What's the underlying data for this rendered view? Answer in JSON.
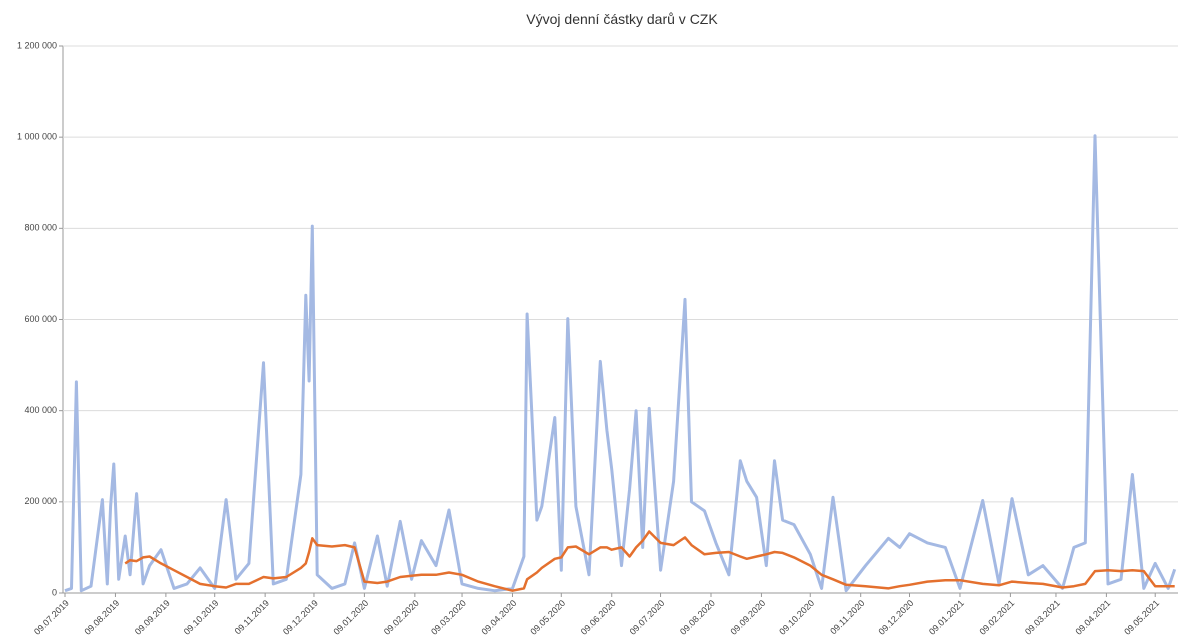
{
  "chart_data": {
    "type": "line",
    "title": "Vývoj denní částky darů v CZK",
    "x": [
      "09.07.2019",
      "13.07.2019",
      "16.07.2019",
      "19.07.2019",
      "25.07.2019",
      "01.08.2019",
      "04.08.2019",
      "06.08.2019",
      "08.08.2019",
      "11.08.2019",
      "15.08.2019",
      "18.08.2019",
      "22.08.2019",
      "26.08.2019",
      "30.08.2019",
      "06.09.2019",
      "14.09.2019",
      "22.09.2019",
      "30.09.2019",
      "09.10.2019",
      "16.10.2019",
      "22.10.2019",
      "30.10.2019",
      "08.11.2019",
      "14.11.2019",
      "22.11.2019",
      "01.12.2019",
      "04.12.2019",
      "06.12.2019",
      "08.12.2019",
      "11.12.2019",
      "20.12.2019",
      "28.12.2019",
      "03.01.2020",
      "09.01.2020",
      "17.01.2020",
      "23.01.2020",
      "31.01.2020",
      "07.02.2020",
      "13.02.2020",
      "22.02.2020",
      "01.03.2020",
      "09.03.2020",
      "19.03.2020",
      "29.03.2020",
      "09.04.2020",
      "16.04.2020",
      "18.04.2020",
      "24.04.2020",
      "27.04.2020",
      "05.05.2020",
      "09.05.2020",
      "13.05.2020",
      "18.05.2020",
      "26.05.2020",
      "02.06.2020",
      "06.06.2020",
      "09.06.2020",
      "15.06.2020",
      "20.06.2020",
      "24.06.2020",
      "28.06.2020",
      "02.07.2020",
      "09.07.2020",
      "17.07.2020",
      "24.07.2020",
      "28.07.2020",
      "05.08.2020",
      "12.08.2020",
      "20.08.2020",
      "27.08.2020",
      "31.08.2020",
      "06.09.2020",
      "12.09.2020",
      "17.09.2020",
      "22.09.2020",
      "29.09.2020",
      "09.10.2020",
      "16.10.2020",
      "23.10.2020",
      "31.10.2020",
      "12.11.2020",
      "26.11.2020",
      "03.12.2020",
      "09.12.2020",
      "20.12.2020",
      "31.12.2020",
      "09.01.2021",
      "23.01.2021",
      "02.02.2021",
      "10.02.2021",
      "20.02.2021",
      "01.03.2021",
      "13.03.2021",
      "20.03.2021",
      "27.03.2021",
      "02.04.2021",
      "10.04.2021",
      "18.04.2021",
      "25.04.2021",
      "02.05.2021",
      "09.05.2021",
      "17.05.2021",
      "21.05.2021"
    ],
    "series": [
      {
        "color": "#a4b9e3",
        "width": 3,
        "values": [
          5000,
          10000,
          463000,
          5000,
          15000,
          205000,
          20000,
          190000,
          283000,
          30000,
          125000,
          40000,
          218000,
          20000,
          60000,
          95000,
          10000,
          20000,
          55000,
          10000,
          205000,
          30000,
          65000,
          505000,
          20000,
          30000,
          260000,
          653000,
          465000,
          805000,
          40000,
          10000,
          20000,
          110000,
          10000,
          125000,
          15000,
          157000,
          30000,
          115000,
          60000,
          182000,
          20000,
          10000,
          5000,
          10000,
          80000,
          612000,
          160000,
          190000,
          385000,
          50000,
          602000,
          190000,
          40000,
          508000,
          357000,
          272000,
          60000,
          228000,
          400000,
          100000,
          405000,
          50000,
          245000,
          644000,
          200000,
          180000,
          110000,
          40000,
          290000,
          245000,
          210000,
          60000,
          290000,
          160000,
          150000,
          85000,
          10000,
          210000,
          5000,
          60000,
          120000,
          100000,
          130000,
          110000,
          100000,
          10000,
          203000,
          20000,
          207000,
          40000,
          60000,
          10000,
          100000,
          110000,
          1003000,
          20000,
          30000,
          260000,
          10000,
          65000,
          10000,
          52000
        ]
      },
      {
        "color": "#e4702e",
        "width": 2.5,
        "values": [
          null,
          null,
          null,
          null,
          null,
          null,
          null,
          null,
          null,
          null,
          65000,
          72000,
          70000,
          78000,
          80000,
          65000,
          50000,
          35000,
          20000,
          15000,
          12000,
          20000,
          20000,
          35000,
          32000,
          35000,
          55000,
          65000,
          90000,
          120000,
          105000,
          102000,
          105000,
          100000,
          25000,
          22000,
          25000,
          35000,
          38000,
          40000,
          40000,
          45000,
          40000,
          25000,
          15000,
          5000,
          10000,
          30000,
          45000,
          55000,
          75000,
          78000,
          100000,
          102000,
          85000,
          100000,
          100000,
          95000,
          100000,
          80000,
          100000,
          115000,
          135000,
          110000,
          105000,
          122000,
          105000,
          85000,
          88000,
          90000,
          80000,
          75000,
          80000,
          85000,
          90000,
          88000,
          78000,
          60000,
          40000,
          30000,
          18000,
          15000,
          10000,
          15000,
          18000,
          25000,
          28000,
          28000,
          20000,
          17000,
          25000,
          22000,
          20000,
          12000,
          15000,
          20000,
          48000,
          50000,
          48000,
          50000,
          48000,
          15000,
          15000,
          15000
        ]
      }
    ],
    "xlim": [
      "09.07.2019",
      "23.05.2021"
    ],
    "xticks": [
      "09.07.2019",
      "09.08.2019",
      "09.09.2019",
      "09.10.2019",
      "09.11.2019",
      "09.12.2019",
      "09.01.2020",
      "09.02.2020",
      "09.03.2020",
      "09.04.2020",
      "09.05.2020",
      "09.06.2020",
      "09.07.2020",
      "09.08.2020",
      "09.09.2020",
      "09.10.2020",
      "09.11.2020",
      "09.12.2020",
      "09.01.2021",
      "09.02.2021",
      "09.03.2021",
      "09.04.2021",
      "09.05.2021"
    ],
    "ylim": [
      0,
      1200000
    ],
    "yticks": [
      0,
      {
        "value": 200000,
        "label": "200 000"
      },
      {
        "value": 400000,
        "label": "400 000"
      },
      {
        "value": 600000,
        "label": "600 000"
      },
      {
        "value": 800000,
        "label": "800 000"
      },
      {
        "value": 1000000,
        "label": "1 000 000"
      },
      {
        "value": 1200000,
        "label": "1 200 000"
      }
    ],
    "grid": true
  }
}
